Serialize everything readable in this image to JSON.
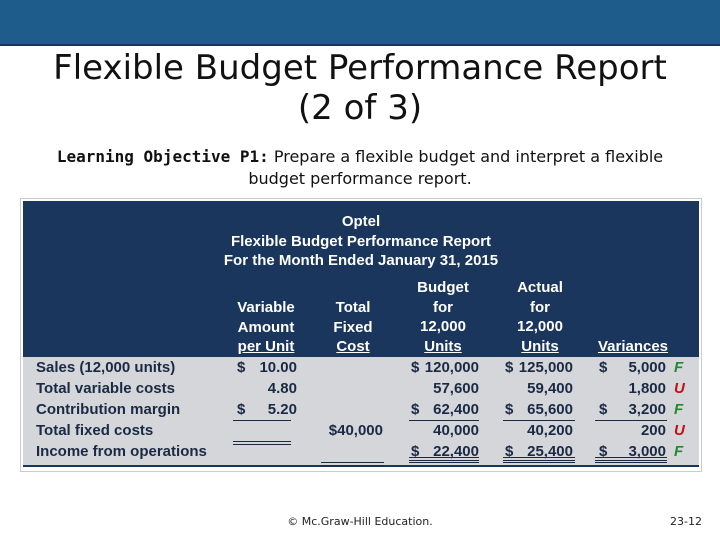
{
  "slide": {
    "title_line1": "Flexible Budget Performance Report",
    "title_line2": "(2 of 3)",
    "objective_label": "Learning Objective P1:",
    "objective_line1": " Prepare a flexible budget and interpret a flexible",
    "objective_line2": "budget performance report."
  },
  "report": {
    "company": "Optel",
    "title": "Flexible Budget Performance Report",
    "period": "For the Month Ended January 31, 2015",
    "columns": {
      "variable": [
        "Variable",
        "Amount",
        "per Unit"
      ],
      "fixed": [
        "Total",
        "Fixed",
        "Cost"
      ],
      "budget": [
        "Budget",
        "for",
        "12,000",
        "Units"
      ],
      "actual": [
        "Actual",
        "for",
        "12,000",
        "Units"
      ],
      "variances": "Variances"
    },
    "rows": [
      {
        "label": "Sales (12,000 units)",
        "var_cur": "$",
        "var": "10.00",
        "fixed": "",
        "bud_cur": "$",
        "budget": "120,000",
        "act_cur": "$",
        "actual": "125,000",
        "v_cur": "$",
        "variance": "5,000",
        "flag": "F"
      },
      {
        "label": "Total variable costs",
        "var_cur": "",
        "var": "4.80",
        "fixed": "",
        "bud_cur": "",
        "budget": "57,600",
        "act_cur": "",
        "actual": "59,400",
        "v_cur": "",
        "variance": "1,800",
        "flag": "U"
      },
      {
        "label": "Contribution margin",
        "var_cur": "$",
        "var": "5.20",
        "fixed": "",
        "bud_cur": "$",
        "budget": "62,400",
        "act_cur": "$",
        "actual": "65,600",
        "v_cur": "$",
        "variance": "3,200",
        "flag": "F"
      },
      {
        "label": "Total fixed costs",
        "var_cur": "",
        "var": "",
        "fixed": "$40,000",
        "bud_cur": "",
        "budget": "40,000",
        "act_cur": "",
        "actual": "40,200",
        "v_cur": "",
        "variance": "200",
        "flag": "U"
      },
      {
        "label": "Income from operations",
        "var_cur": "",
        "var": "",
        "fixed": "",
        "bud_cur": "$",
        "budget": "22,400",
        "act_cur": "$",
        "actual": "25,400",
        "v_cur": "$",
        "variance": "3,000",
        "flag": "F"
      }
    ]
  },
  "colors": {
    "F": "#1f8a2e",
    "U": "#c0111a",
    "panel": "#1b365d",
    "table": "#d4d6da",
    "topbar": "#1e5c8c"
  },
  "footer": {
    "copyright": "© Mc.Graw-Hill Education.",
    "page": "23-12"
  }
}
